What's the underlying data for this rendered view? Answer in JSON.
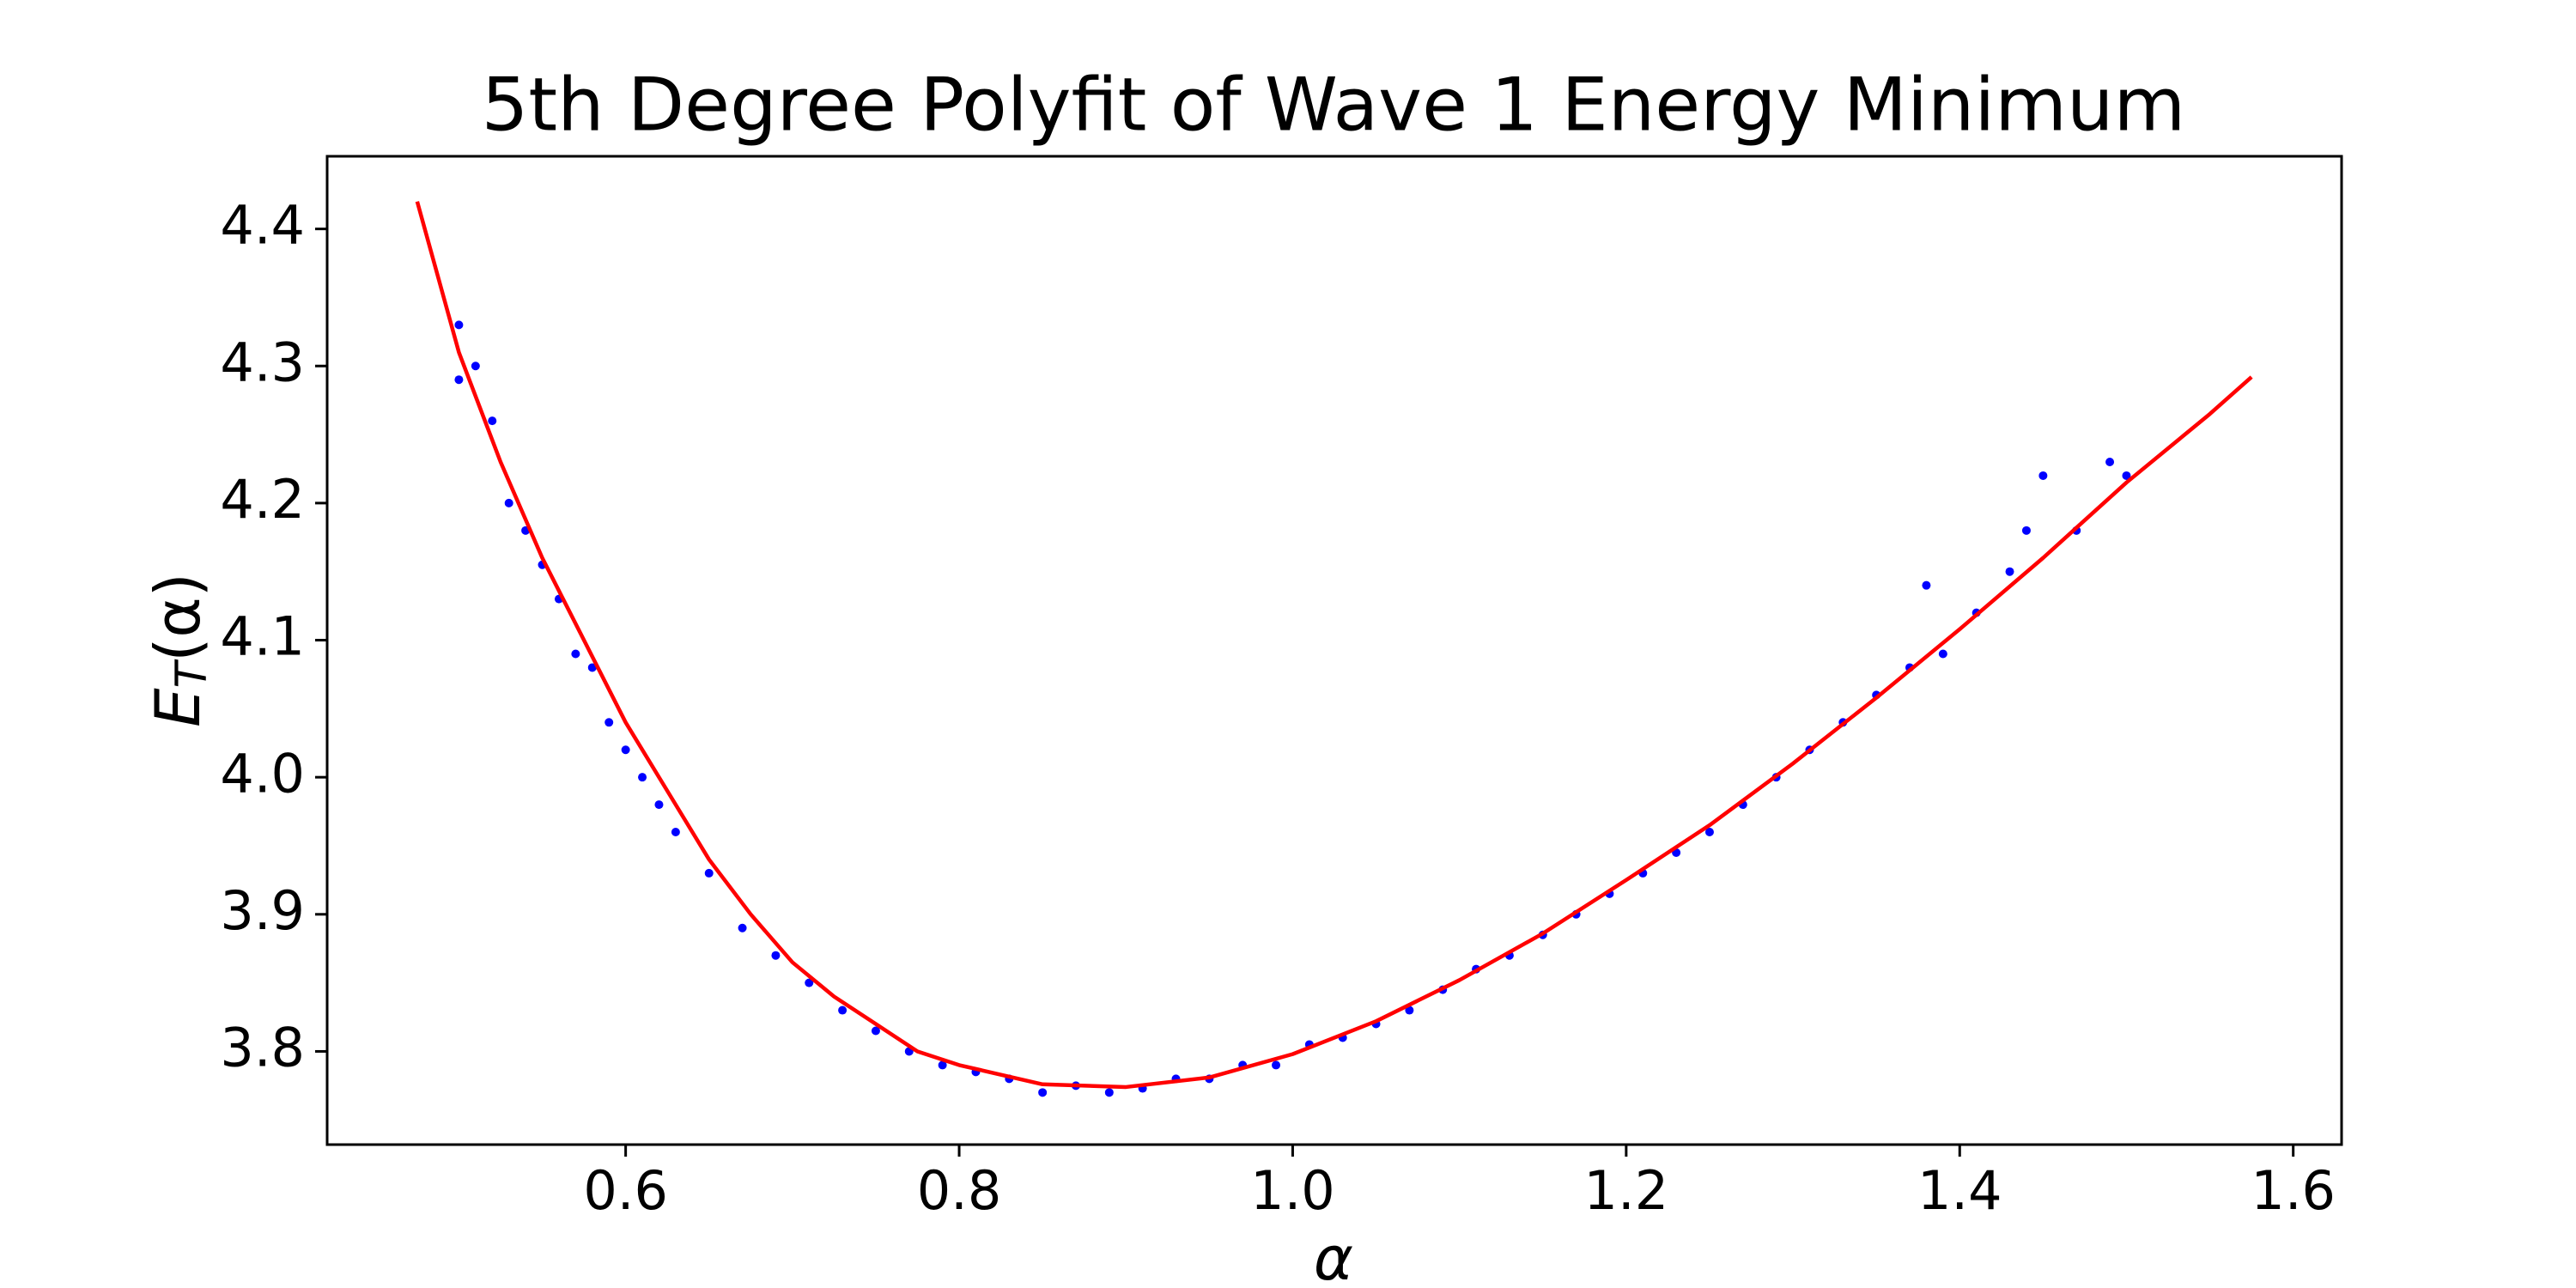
{
  "chart_data": {
    "type": "scatter",
    "title": "5th Degree Polyfit of Wave 1 Energy Minimum",
    "xlabel": "α",
    "ylabel": {
      "main": "E",
      "sub": "T",
      "rest": "(α)"
    },
    "xlim": [
      0.421,
      1.629
    ],
    "ylim": [
      3.732,
      4.453
    ],
    "xticks": [
      0.6,
      0.8,
      {
        "value": 1,
        "label": "1.0"
      },
      1.2,
      1.4,
      1.6
    ],
    "yticks": [
      3.8,
      3.9,
      {
        "value": 4,
        "label": "4.0"
      },
      4.1,
      4.2,
      4.3,
      4.4
    ],
    "series": [
      {
        "type": "scatter",
        "color": "#0000ff",
        "x": [
          0.5,
          0.5,
          0.51,
          0.52,
          0.53,
          0.54,
          0.55,
          0.56,
          0.57,
          0.58,
          0.59,
          0.6,
          0.61,
          0.62,
          0.63,
          0.65,
          0.67,
          0.69,
          0.71,
          0.73,
          0.75,
          0.77,
          0.79,
          0.81,
          0.83,
          0.85,
          0.87,
          0.89,
          0.91,
          0.93,
          0.95,
          0.97,
          0.99,
          1.01,
          1.03,
          1.05,
          1.07,
          1.09,
          1.11,
          1.13,
          1.15,
          1.17,
          1.19,
          1.21,
          1.23,
          1.25,
          1.27,
          1.29,
          1.31,
          1.33,
          1.35,
          1.37,
          1.38,
          1.39,
          1.41,
          1.43,
          1.44,
          1.45,
          1.47,
          1.49,
          1.5
        ],
        "values": [
          4.33,
          4.29,
          4.3,
          4.26,
          4.2,
          4.18,
          4.155,
          4.13,
          4.09,
          4.08,
          4.04,
          4.02,
          4.0,
          3.98,
          3.96,
          3.93,
          3.89,
          3.87,
          3.85,
          3.83,
          3.815,
          3.8,
          3.79,
          3.785,
          3.78,
          3.77,
          3.775,
          3.77,
          3.773,
          3.78,
          3.78,
          3.79,
          3.79,
          3.805,
          3.81,
          3.82,
          3.83,
          3.845,
          3.86,
          3.87,
          3.885,
          3.9,
          3.915,
          3.93,
          3.945,
          3.96,
          3.98,
          4.0,
          4.02,
          4.04,
          4.06,
          4.08,
          4.14,
          4.09,
          4.12,
          4.15,
          4.18,
          4.22,
          4.18,
          4.23,
          4.22
        ]
      },
      {
        "type": "line",
        "color": "#ff0000",
        "x": [
          0.475,
          0.5,
          0.525,
          0.55,
          0.575,
          0.6,
          0.625,
          0.65,
          0.675,
          0.7,
          0.725,
          0.75,
          0.775,
          0.8,
          0.85,
          0.9,
          0.95,
          1.0,
          1.05,
          1.1,
          1.15,
          1.2,
          1.25,
          1.3,
          1.35,
          1.4,
          1.45,
          1.5,
          1.55,
          1.575
        ],
        "values": [
          4.42,
          4.31,
          4.23,
          4.16,
          4.1,
          4.04,
          3.99,
          3.94,
          3.9,
          3.865,
          3.84,
          3.82,
          3.8,
          3.79,
          3.776,
          3.774,
          3.781,
          3.798,
          3.822,
          3.852,
          3.886,
          3.925,
          3.965,
          4.01,
          4.058,
          4.108,
          4.16,
          4.215,
          4.265,
          4.292
        ]
      }
    ]
  }
}
